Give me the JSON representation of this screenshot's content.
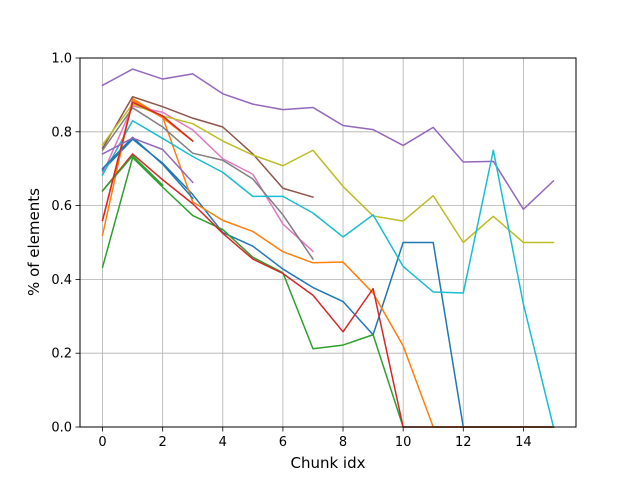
{
  "chart_data": {
    "type": "line",
    "title": "",
    "xlabel": "Chunk idx",
    "ylabel": "% of elements",
    "xlim": [
      -0.75,
      15.75
    ],
    "ylim": [
      0,
      1.0
    ],
    "grid": true,
    "legend": "none",
    "x_ticks": [
      0,
      2,
      4,
      6,
      8,
      10,
      12,
      14
    ],
    "x_tick_labels": [
      "0",
      "2",
      "4",
      "6",
      "8",
      "10",
      "12",
      "14"
    ],
    "y_ticks": [
      0,
      0.2,
      0.4,
      0.6,
      0.8,
      1.0
    ],
    "y_tick_labels": [
      "0.0",
      "0.2",
      "0.4",
      "0.6",
      "0.8",
      "1.0"
    ],
    "series": [
      {
        "color": "#1f77b4",
        "x": [
          0,
          1,
          2,
          3,
          4,
          5,
          6,
          7,
          8,
          9,
          10,
          11,
          12,
          13,
          14,
          15
        ],
        "y": [
          0.695,
          0.78,
          0.715,
          0.63,
          0.527,
          0.49,
          0.428,
          0.378,
          0.34,
          0.25,
          0.5,
          0.5,
          0.0,
          0.0,
          0.0,
          0.0
        ]
      },
      {
        "color": "#ff7f0e",
        "x": [
          0,
          1,
          2,
          3,
          4,
          5,
          6,
          7,
          8,
          9,
          10,
          11,
          12,
          13,
          14,
          15
        ],
        "y": [
          0.52,
          0.89,
          0.84,
          0.61,
          0.56,
          0.53,
          0.475,
          0.445,
          0.447,
          0.363,
          0.22,
          0.0,
          0.0,
          0.0,
          0.0,
          0.0
        ]
      },
      {
        "color": "#2ca02c",
        "x": [
          0,
          1,
          2,
          3,
          4,
          5,
          6,
          7,
          8,
          9,
          10,
          11,
          12,
          13,
          14,
          15
        ],
        "y": [
          0.433,
          0.73,
          0.65,
          0.573,
          0.535,
          0.46,
          0.418,
          0.212,
          0.222,
          0.25,
          0.0,
          0.0,
          0.0,
          0.0,
          0.0,
          0.0
        ]
      },
      {
        "color": "#d62728",
        "x": [
          0,
          1,
          2,
          3,
          4,
          5,
          6,
          7,
          8,
          9,
          10,
          11,
          12,
          13,
          14,
          15
        ],
        "y": [
          0.64,
          0.74,
          0.67,
          0.605,
          0.525,
          0.455,
          0.416,
          0.357,
          0.258,
          0.375,
          0.0,
          0.0,
          0.0,
          0.0,
          0.0,
          0.0
        ]
      },
      {
        "color": "#9467bd",
        "x": [
          0,
          1,
          2,
          3,
          4,
          5,
          6,
          7,
          8,
          9,
          10,
          11,
          12,
          13,
          14,
          15
        ],
        "y": [
          0.926,
          0.97,
          0.943,
          0.957,
          0.903,
          0.875,
          0.86,
          0.866,
          0.817,
          0.806,
          0.763,
          0.812,
          0.718,
          0.72,
          0.59,
          0.667
        ]
      },
      {
        "color": "#8c564b",
        "x": [
          0,
          1,
          2,
          3,
          4,
          5,
          6,
          7
        ],
        "y": [
          0.755,
          0.895,
          0.868,
          0.837,
          0.813,
          0.74,
          0.647,
          0.623
        ]
      },
      {
        "color": "#e377c2",
        "x": [
          0,
          1,
          2,
          3,
          4,
          5,
          6,
          7
        ],
        "y": [
          0.685,
          0.87,
          0.853,
          0.805,
          0.727,
          0.685,
          0.55,
          0.476
        ]
      },
      {
        "color": "#7f7f7f",
        "x": [
          0,
          1,
          2,
          3,
          4,
          5,
          6,
          7
        ],
        "y": [
          0.75,
          0.865,
          0.813,
          0.742,
          0.723,
          0.672,
          0.575,
          0.455
        ]
      },
      {
        "color": "#bcbd22",
        "x": [
          0,
          1,
          2,
          3,
          4,
          5,
          6,
          7,
          8,
          9,
          10,
          11,
          12,
          13,
          14,
          15
        ],
        "y": [
          0.765,
          0.875,
          0.843,
          0.822,
          0.775,
          0.737,
          0.708,
          0.75,
          0.652,
          0.572,
          0.558,
          0.627,
          0.5,
          0.571,
          0.5,
          0.5
        ]
      },
      {
        "color": "#17becf",
        "x": [
          0,
          1,
          2,
          3,
          4,
          5,
          6,
          7,
          8,
          9,
          10,
          11,
          12,
          13,
          14,
          15
        ],
        "y": [
          0.683,
          0.83,
          0.782,
          0.733,
          0.69,
          0.625,
          0.625,
          0.58,
          0.515,
          0.575,
          0.435,
          0.366,
          0.363,
          0.75,
          0.333,
          0.0
        ]
      },
      {
        "color": "#1f77b4",
        "x": [
          0,
          1,
          2,
          3
        ],
        "y": [
          0.7,
          0.785,
          0.712,
          0.62
        ]
      },
      {
        "color": "#ff7f0e",
        "x": [
          0,
          1,
          2,
          3
        ],
        "y": [
          0.56,
          0.885,
          0.838,
          0.775
        ]
      },
      {
        "color": "#2ca02c",
        "x": [
          0,
          1,
          2
        ],
        "y": [
          0.64,
          0.735,
          0.655
        ]
      },
      {
        "color": "#d62728",
        "x": [
          0,
          1,
          2,
          3
        ],
        "y": [
          0.56,
          0.88,
          0.843,
          0.775
        ]
      },
      {
        "color": "#9467bd",
        "x": [
          0,
          1,
          2,
          3
        ],
        "y": [
          0.74,
          0.783,
          0.752,
          0.663
        ]
      }
    ]
  }
}
